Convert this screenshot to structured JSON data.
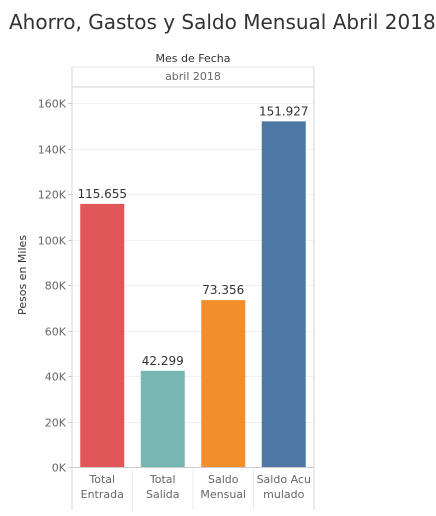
{
  "title": "Ahorro, Gastos y Saldo Mensual Abril 2018",
  "header": {
    "column_field": "Mes de Fecha",
    "column_value": "abril 2018"
  },
  "chart_data": {
    "type": "bar",
    "title": "Ahorro, Gastos y Saldo Mensual Abril 2018",
    "xlabel": "",
    "ylabel": "Pesos en Miles",
    "ylim": [
      0,
      165000
    ],
    "yticks": [
      0,
      20000,
      40000,
      60000,
      80000,
      100000,
      120000,
      140000,
      160000
    ],
    "ytick_labels": [
      "0K",
      "20K",
      "40K",
      "60K",
      "80K",
      "100K",
      "120K",
      "140K",
      "160K"
    ],
    "categories": [
      [
        "Total",
        "Entrada"
      ],
      [
        "Total",
        "Salida"
      ],
      [
        "Saldo",
        "Mensual"
      ],
      [
        "Saldo Acu",
        "mulado"
      ]
    ],
    "values": [
      115655,
      42299,
      73356,
      151927
    ],
    "value_labels": [
      "115.655",
      "42.299",
      "73.356",
      "151.927"
    ],
    "colors": [
      "#e15759",
      "#76b7b2",
      "#f28e2b",
      "#4e79a7"
    ],
    "grid": true
  }
}
